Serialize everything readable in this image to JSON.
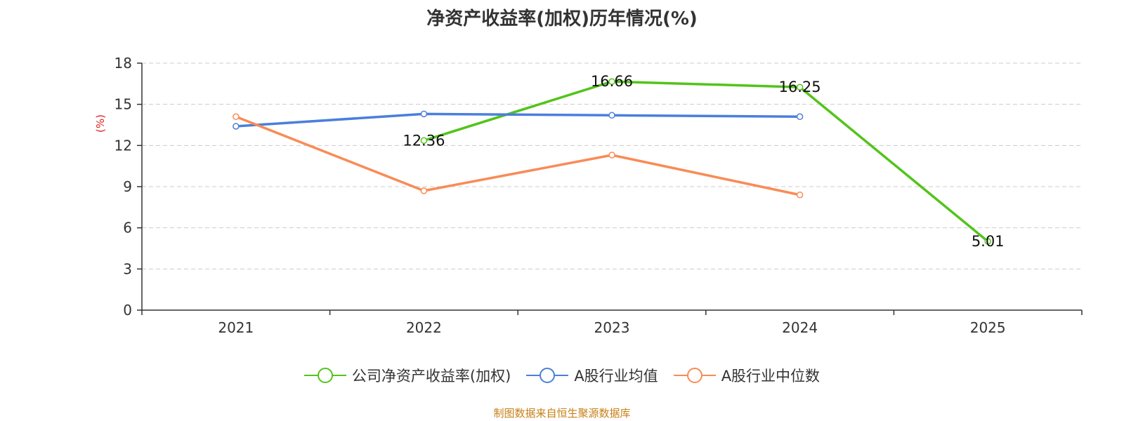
{
  "title": "净资产收益率(加权)历年情况(%)",
  "source": "制图数据来自恒生聚源数据库",
  "chart_data": {
    "type": "line",
    "title": "净资产收益率(加权)历年情况(%)",
    "xlabel": "",
    "ylabel": "(%)",
    "ylim": [
      0,
      18
    ],
    "yticks": [
      0,
      3,
      6,
      9,
      12,
      15,
      18
    ],
    "grid": true,
    "legend_position": "bottom",
    "categories": [
      "2021",
      "2022",
      "2023",
      "2024",
      "2025"
    ],
    "series": [
      {
        "name": "公司净资产收益率(加权)",
        "color": "#52c41a",
        "values": [
          null,
          12.36,
          16.66,
          16.25,
          5.01
        ],
        "labels": [
          "",
          "12.36",
          "16.66",
          "16.25",
          "5.01"
        ]
      },
      {
        "name": "A股行业均值",
        "color": "#4a7fdc",
        "values": [
          13.4,
          14.3,
          14.2,
          14.1,
          null
        ],
        "labels": []
      },
      {
        "name": "A股行业中位数",
        "color": "#f98b56",
        "values": [
          14.1,
          8.7,
          11.3,
          8.4,
          null
        ],
        "labels": []
      }
    ]
  }
}
